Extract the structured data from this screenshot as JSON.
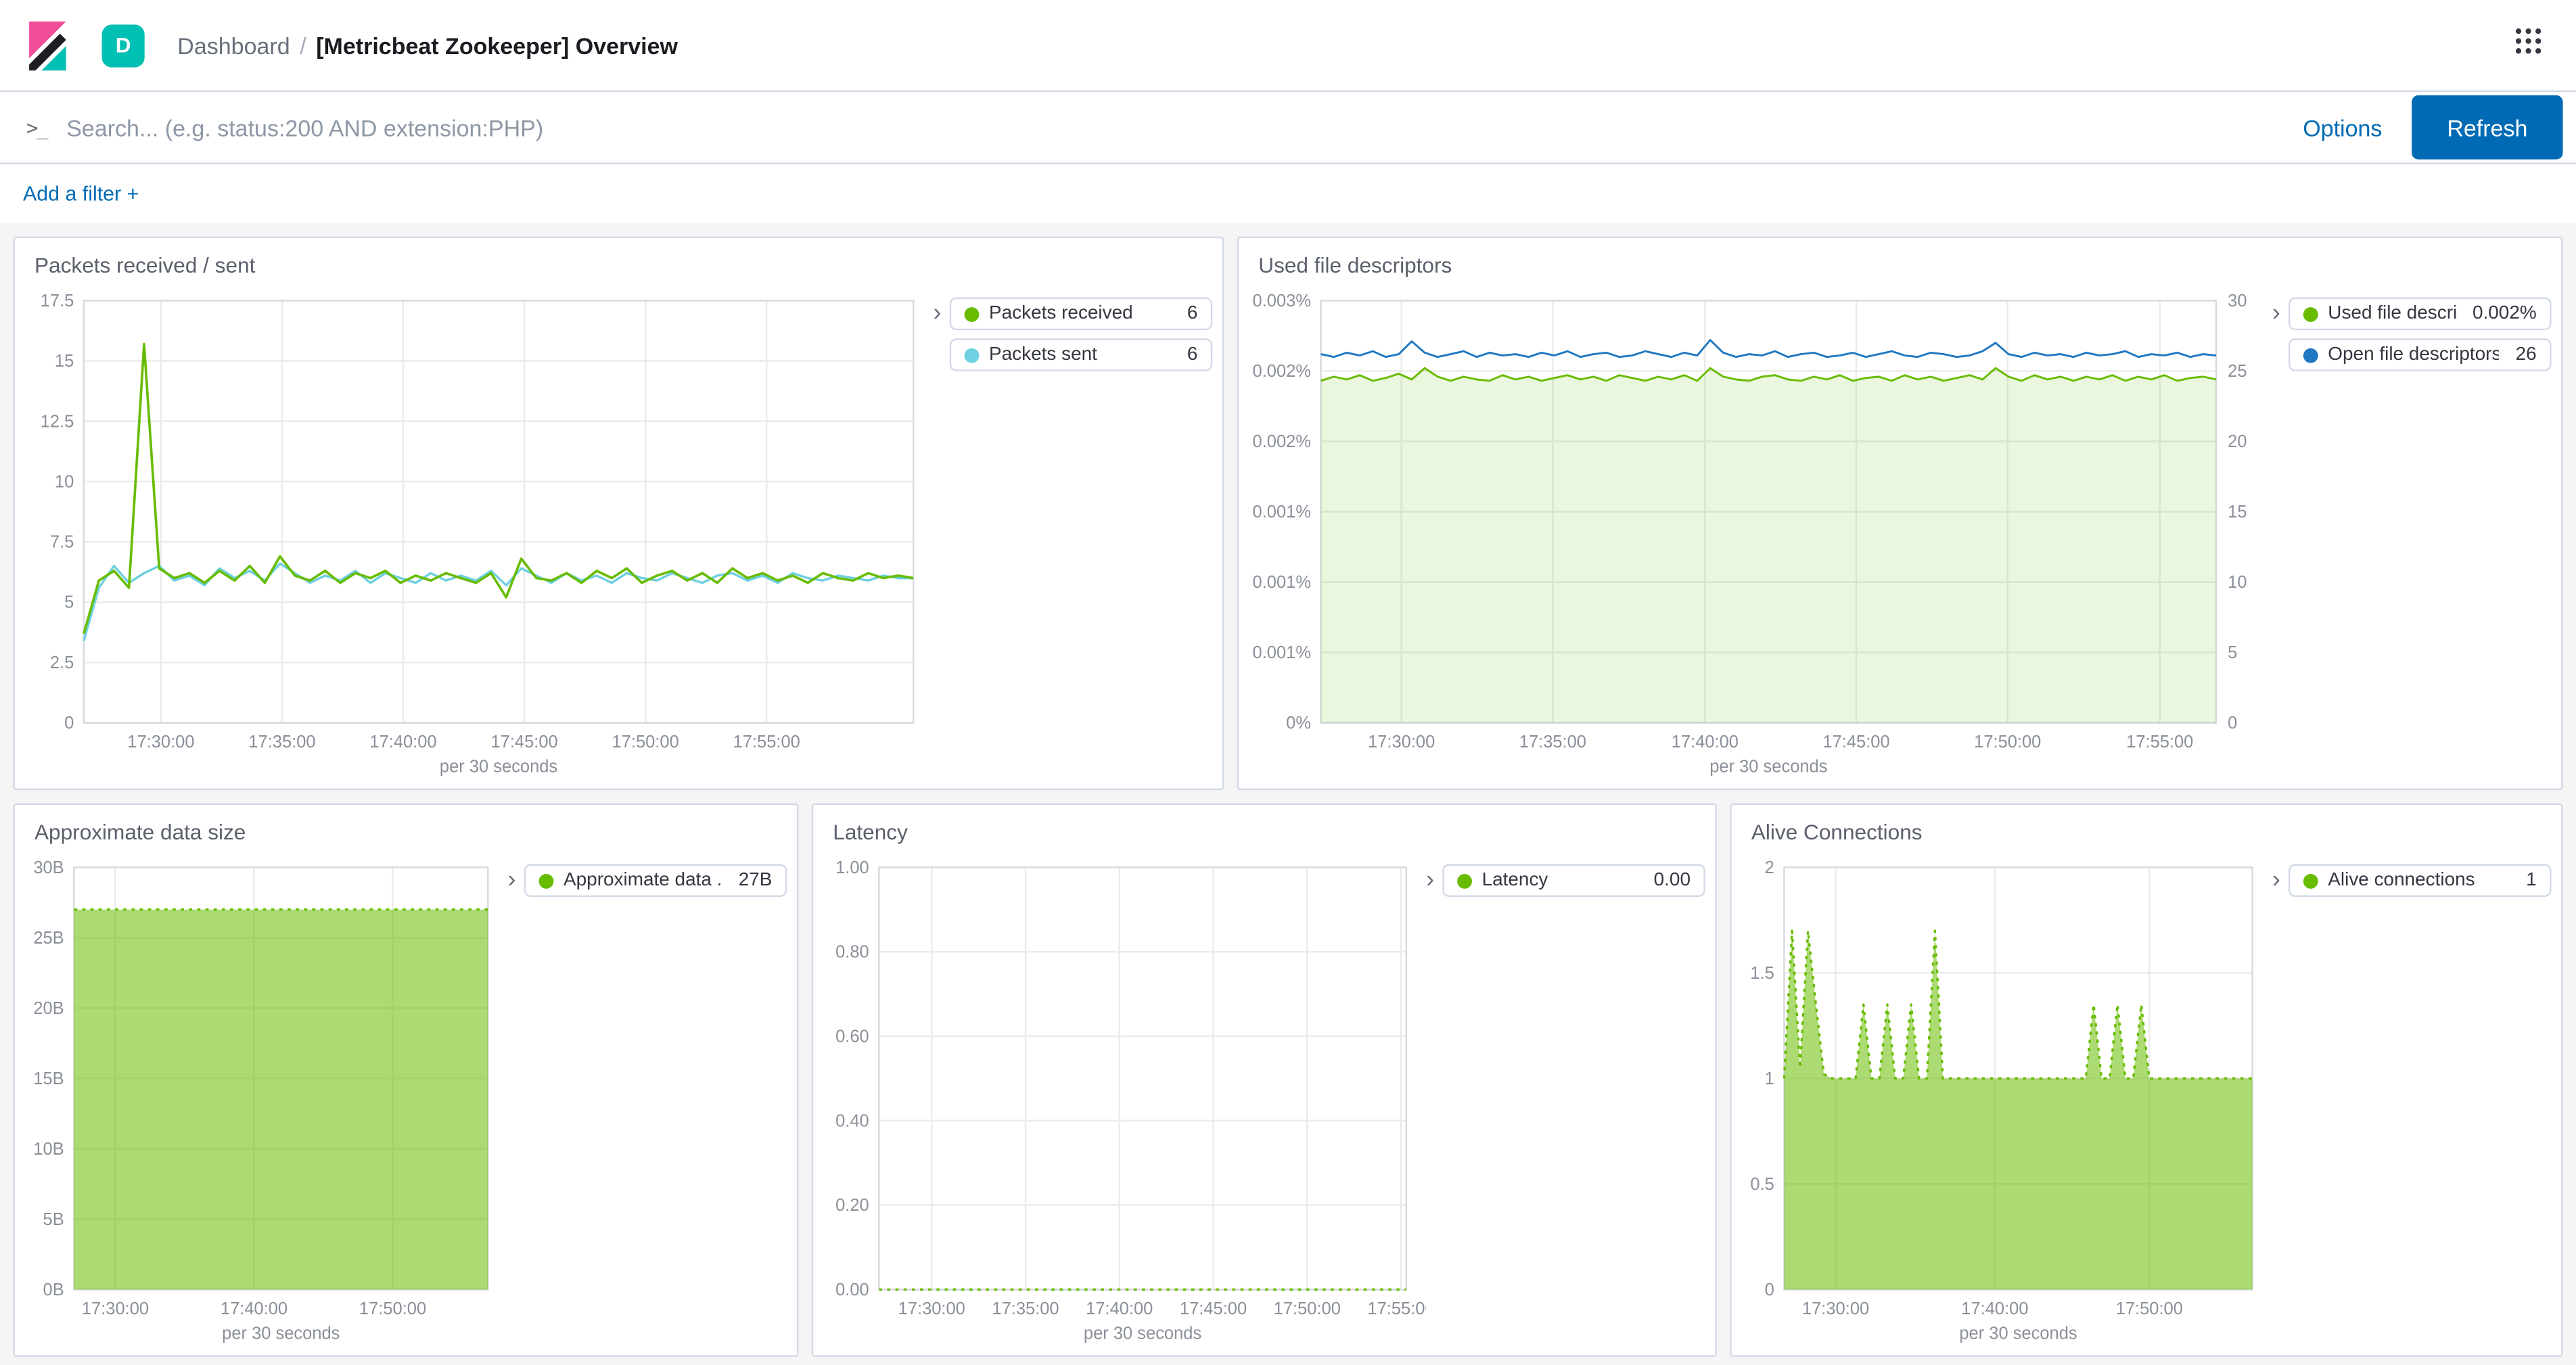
{
  "colors": {
    "accent_blue": "#006BB4",
    "badge_teal": "#00BFB3",
    "series_green": "#68BC00",
    "series_cyan": "#6ED0E0",
    "series_blue": "#1F78C1",
    "logo_pink": "#F04E98",
    "logo_teal": "#00BFB3"
  },
  "header": {
    "space_badge": "D",
    "breadcrumb": "Dashboard",
    "breadcrumb_separator": "/",
    "page_title": "[Metricbeat Zookeeper] Overview"
  },
  "search": {
    "prompt_icon": ">_",
    "placeholder": "Search... (e.g. status:200 AND extension:PHP)",
    "options_label": "Options",
    "refresh_label": "Refresh"
  },
  "filters": {
    "add_filter_label": "Add a filter +"
  },
  "panels": [
    {
      "title": "Packets received / sent",
      "legend": [
        {
          "label": "Packets received",
          "value": "6",
          "color": "#68BC00"
        },
        {
          "label": "Packets sent",
          "value": "6",
          "color": "#6ED0E0"
        }
      ],
      "chart_data": {
        "type": "line",
        "title": "Packets received / sent",
        "ylim": [
          0,
          17.5
        ],
        "yticks": [
          "0",
          "2.5",
          "5",
          "7.5",
          "10",
          "12.5",
          "15",
          "17.5"
        ],
        "xticks": [
          {
            "pos": 0.093,
            "label": "17:30:00"
          },
          {
            "pos": 0.239,
            "label": "17:35:00"
          },
          {
            "pos": 0.385,
            "label": "17:40:00"
          },
          {
            "pos": 0.531,
            "label": "17:45:00"
          },
          {
            "pos": 0.677,
            "label": "17:50:00"
          },
          {
            "pos": 0.823,
            "label": "17:55:00"
          }
        ],
        "xlabel": "per 30 seconds",
        "series": [
          {
            "name": "Packets sent",
            "color": "#6ED0E0",
            "type": "line",
            "width": 1.4,
            "values": [
              3.4,
              5.6,
              6.5,
              5.8,
              6.2,
              6.5,
              5.9,
              6.1,
              5.7,
              6.4,
              6.0,
              6.3,
              5.9,
              6.6,
              6.2,
              5.8,
              6.1,
              5.9,
              6.3,
              5.8,
              6.2,
              6.0,
              5.8,
              6.2,
              5.9,
              6.1,
              5.9,
              6.3,
              5.7,
              6.4,
              6.1,
              5.8,
              6.2,
              5.9,
              6.1,
              5.8,
              6.2,
              6.0,
              5.9,
              6.2,
              6.0,
              5.8,
              6.1,
              6.2,
              5.9,
              6.1,
              5.8,
              6.2,
              6.0,
              5.9,
              6.1,
              6.0,
              5.9,
              6.1,
              6.0,
              6.0
            ]
          },
          {
            "name": "Packets received",
            "color": "#68BC00",
            "type": "line",
            "width": 1.5,
            "values": [
              3.7,
              5.9,
              6.3,
              5.6,
              15.7,
              6.4,
              6.0,
              6.2,
              5.8,
              6.3,
              5.9,
              6.5,
              5.8,
              6.9,
              6.1,
              5.9,
              6.3,
              5.8,
              6.2,
              6.0,
              6.3,
              5.8,
              6.1,
              5.9,
              6.2,
              6.0,
              5.8,
              6.2,
              5.2,
              6.8,
              6.0,
              5.9,
              6.2,
              5.8,
              6.3,
              6.0,
              6.4,
              5.8,
              6.1,
              6.3,
              5.9,
              6.2,
              5.8,
              6.4,
              6.0,
              6.2,
              5.9,
              6.1,
              5.8,
              6.2,
              6.0,
              5.9,
              6.2,
              6.0,
              6.1,
              6.0
            ]
          }
        ]
      }
    },
    {
      "title": "Used file descriptors",
      "legend": [
        {
          "label": "Used file descri...",
          "value": "0.002%",
          "color": "#68BC00"
        },
        {
          "label": "Open file descriptors",
          "value": "26",
          "color": "#1F78C1"
        }
      ],
      "chart_data": {
        "type": "area",
        "title": "Used file descriptors",
        "ylim": [
          0,
          0.003
        ],
        "yticks": [
          "0%",
          "0.001%",
          "0.001%",
          "0.001%",
          "0.002%",
          "0.002%",
          "0.003%"
        ],
        "y2lim": [
          0,
          30
        ],
        "y2ticks": [
          "0",
          "5",
          "10",
          "15",
          "20",
          "25",
          "30"
        ],
        "xticks": [
          {
            "pos": 0.09,
            "label": "17:30:00"
          },
          {
            "pos": 0.259,
            "label": "17:35:00"
          },
          {
            "pos": 0.429,
            "label": "17:40:00"
          },
          {
            "pos": 0.598,
            "label": "17:45:00"
          },
          {
            "pos": 0.767,
            "label": "17:50:00"
          },
          {
            "pos": 0.937,
            "label": "17:55:00"
          }
        ],
        "xlabel": "per 30 seconds",
        "series": [
          {
            "name": "Used file descriptors",
            "color": "#68BC00",
            "type": "area",
            "fill_opacity": 0.13,
            "width": 1.2,
            "values": [
              0.00243,
              0.00246,
              0.00244,
              0.00247,
              0.00243,
              0.00245,
              0.00248,
              0.00244,
              0.00252,
              0.00246,
              0.00243,
              0.00246,
              0.00244,
              0.00243,
              0.00247,
              0.00244,
              0.00246,
              0.00243,
              0.00245,
              0.00247,
              0.00244,
              0.00246,
              0.00243,
              0.00247,
              0.00245,
              0.00243,
              0.00246,
              0.00244,
              0.00247,
              0.00243,
              0.00252,
              0.00246,
              0.00244,
              0.00243,
              0.00246,
              0.00247,
              0.00244,
              0.00243,
              0.00246,
              0.00244,
              0.00247,
              0.00243,
              0.00245,
              0.00246,
              0.00243,
              0.00247,
              0.00244,
              0.00246,
              0.00243,
              0.00245,
              0.00247,
              0.00244,
              0.00252,
              0.00246,
              0.00243,
              0.00247,
              0.00244,
              0.00246,
              0.00243,
              0.00246,
              0.00244,
              0.00247,
              0.00243,
              0.00246,
              0.00244,
              0.00247,
              0.00243,
              0.00245,
              0.00246,
              0.00244
            ]
          },
          {
            "name": "Open file descriptors",
            "color": "#1F78C1",
            "type": "line",
            "axis": "y2",
            "width": 1.2,
            "values": [
              26.2,
              26.0,
              26.3,
              26.1,
              26.4,
              26.0,
              26.2,
              27.1,
              26.3,
              26.0,
              26.2,
              26.4,
              26.0,
              26.3,
              26.1,
              26.2,
              26.0,
              26.3,
              26.1,
              26.4,
              26.0,
              26.2,
              26.3,
              26.0,
              26.1,
              26.4,
              26.2,
              26.0,
              26.3,
              26.1,
              27.2,
              26.3,
              26.0,
              26.2,
              26.1,
              26.4,
              26.0,
              26.2,
              26.3,
              26.0,
              26.1,
              26.3,
              26.0,
              26.2,
              26.4,
              26.1,
              26.0,
              26.3,
              26.2,
              26.0,
              26.1,
              26.4,
              27.0,
              26.2,
              26.0,
              26.3,
              26.1,
              26.2,
              26.0,
              26.3,
              26.1,
              26.2,
              26.4,
              26.0,
              26.2,
              26.1,
              26.3,
              26.0,
              26.2,
              26.1
            ]
          }
        ]
      }
    },
    {
      "title": "Approximate data size",
      "legend": [
        {
          "label": "Approximate data ...",
          "value": "27B",
          "color": "#68BC00"
        }
      ],
      "chart_data": {
        "type": "area",
        "title": "Approximate data size",
        "ylim": [
          0,
          30
        ],
        "yticks": [
          "0B",
          "5B",
          "10B",
          "15B",
          "20B",
          "25B",
          "30B"
        ],
        "xticks": [
          {
            "pos": 0.1,
            "label": "17:30:00"
          },
          {
            "pos": 0.435,
            "label": "17:40:00"
          },
          {
            "pos": 0.77,
            "label": "17:50:00"
          }
        ],
        "xlabel": "per 30 seconds",
        "series": [
          {
            "name": "Approximate data size",
            "color": "#68BC00",
            "type": "area",
            "fill_opacity": 0.55,
            "dash": "2,3",
            "width": 1.4,
            "values": [
              27,
              27,
              27,
              27,
              27,
              27,
              27,
              27,
              27,
              27,
              27,
              27,
              27,
              27,
              27,
              27,
              27,
              27,
              27,
              27,
              27,
              27,
              27,
              27,
              27,
              27,
              27,
              27,
              27,
              27,
              27,
              27,
              27,
              27,
              27,
              27,
              27,
              27,
              27,
              27
            ]
          }
        ]
      }
    },
    {
      "title": "Latency",
      "legend": [
        {
          "label": "Latency",
          "value": "0.00",
          "color": "#68BC00"
        }
      ],
      "chart_data": {
        "type": "line",
        "title": "Latency",
        "ylim": [
          0,
          1
        ],
        "yticks": [
          "0.00",
          "0.20",
          "0.40",
          "0.60",
          "0.80",
          "1.00"
        ],
        "xticks": [
          {
            "pos": 0.1,
            "label": "17:30:00"
          },
          {
            "pos": 0.278,
            "label": "17:35:00"
          },
          {
            "pos": 0.456,
            "label": "17:40:00"
          },
          {
            "pos": 0.634,
            "label": "17:45:00"
          },
          {
            "pos": 0.812,
            "label": "17:50:00"
          },
          {
            "pos": 0.99,
            "label": "17:55:00"
          }
        ],
        "xlabel": "per 30 seconds",
        "series": [
          {
            "name": "Latency",
            "color": "#68BC00",
            "type": "line",
            "dash": "2,3",
            "width": 1.4,
            "values": [
              0,
              0,
              0,
              0,
              0,
              0,
              0,
              0,
              0,
              0,
              0,
              0,
              0,
              0,
              0,
              0,
              0,
              0,
              0,
              0,
              0,
              0,
              0,
              0,
              0,
              0,
              0,
              0,
              0,
              0,
              0,
              0,
              0,
              0,
              0,
              0,
              0,
              0,
              0,
              0
            ]
          }
        ]
      }
    },
    {
      "title": "Alive Connections",
      "legend": [
        {
          "label": "Alive connections",
          "value": "1",
          "color": "#68BC00"
        }
      ],
      "chart_data": {
        "type": "area",
        "title": "Alive Connections",
        "ylim": [
          0,
          2
        ],
        "yticks": [
          "0",
          "0.5",
          "1",
          "1.5",
          "2"
        ],
        "xticks": [
          {
            "pos": 0.11,
            "label": "17:30:00"
          },
          {
            "pos": 0.45,
            "label": "17:40:00"
          },
          {
            "pos": 0.78,
            "label": "17:50:00"
          }
        ],
        "xlabel": "per 30 seconds",
        "series": [
          {
            "name": "Alive connections",
            "color": "#68BC00",
            "type": "area",
            "fill_opacity": 0.55,
            "dash": "2,3",
            "width": 1.4,
            "values": [
              1,
              1.7,
              1.05,
              1.7,
              1.35,
              1.02,
              1,
              1,
              1,
              1,
              1.35,
              1,
              1,
              1.35,
              1,
              1,
              1.35,
              1,
              1,
              1.7,
              1,
              1,
              1,
              1,
              1,
              1,
              1,
              1,
              1,
              1,
              1,
              1,
              1,
              1,
              1,
              1,
              1,
              1,
              1,
              1.35,
              1,
              1,
              1.35,
              1,
              1,
              1.35,
              1,
              1,
              1,
              1,
              1,
              1,
              1,
              1,
              1,
              1,
              1,
              1,
              1,
              1
            ]
          }
        ]
      }
    }
  ]
}
